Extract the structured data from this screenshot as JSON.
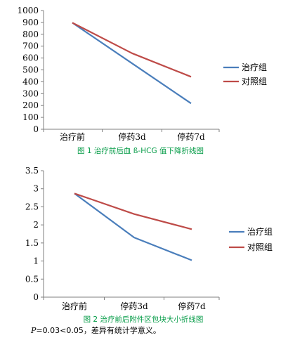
{
  "colors": {
    "treatment": "#4A7EBB",
    "control": "#BE4B48",
    "caption": "#009a44",
    "axis": "#7f7f7f"
  },
  "chart_data": [
    {
      "type": "line",
      "caption": "图 1 治疗前后血 ß-HCG 值下降折线图",
      "categories": [
        "治疗前",
        "停药3d",
        "停药7d"
      ],
      "ylim": [
        0,
        1000
      ],
      "ytick_step": 100,
      "ytick_decimals": 0,
      "legend": "right",
      "grid": false,
      "series": [
        {
          "name": "治疗组",
          "color_key": "treatment",
          "values": [
            897,
            555,
            218
          ]
        },
        {
          "name": "对照组",
          "color_key": "control",
          "values": [
            897,
            640,
            442
          ]
        }
      ]
    },
    {
      "type": "line",
      "caption": "图 2 治疗前后附件区包块大小折线图",
      "categories": [
        "治疗前",
        "停药3d",
        "停药7d"
      ],
      "ylim": [
        0,
        3.5
      ],
      "ytick_step": 0.5,
      "ytick_decimals": 1,
      "legend": "right",
      "grid": false,
      "series": [
        {
          "name": "治疗组",
          "color_key": "treatment",
          "values": [
            2.87,
            1.65,
            1.02
          ]
        },
        {
          "name": "对照组",
          "color_key": "control",
          "values": [
            2.87,
            2.3,
            1.88
          ]
        }
      ]
    }
  ],
  "footnote": {
    "p_symbol": "P",
    "text": "=0.03<0.05，差异有统计学意义。"
  }
}
